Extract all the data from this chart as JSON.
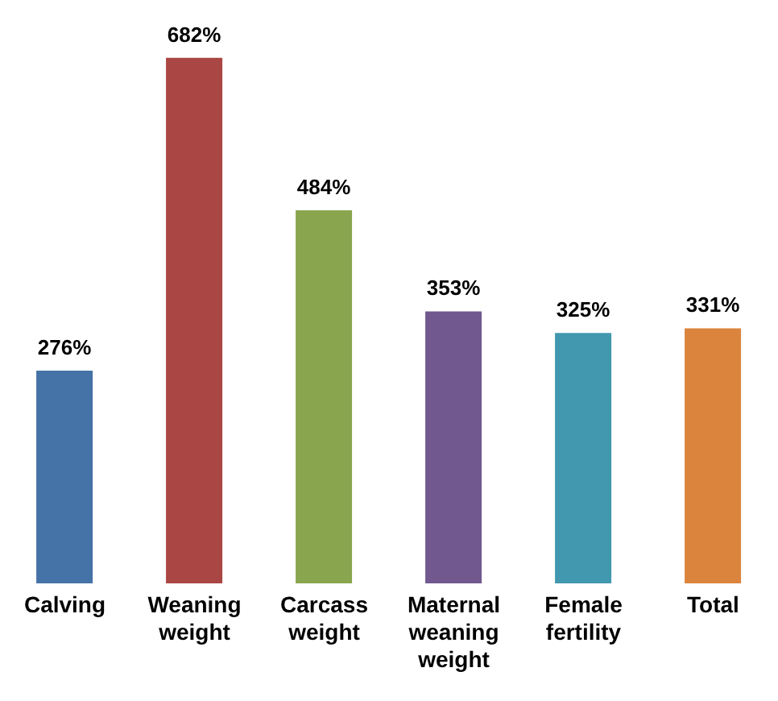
{
  "chart_data": {
    "type": "bar",
    "categories": [
      "Calving",
      "Weaning weight",
      "Carcass weight",
      "Maternal weaning weight",
      "Female fertility",
      "Total"
    ],
    "values": [
      276,
      682,
      484,
      353,
      325,
      331
    ],
    "colors": [
      "#4572a7",
      "#aa4643",
      "#89a54e",
      "#71588f",
      "#4198af",
      "#db843d"
    ],
    "value_labels": [
      "276%",
      "682%",
      "484%",
      "353%",
      "325%",
      "331%"
    ]
  }
}
